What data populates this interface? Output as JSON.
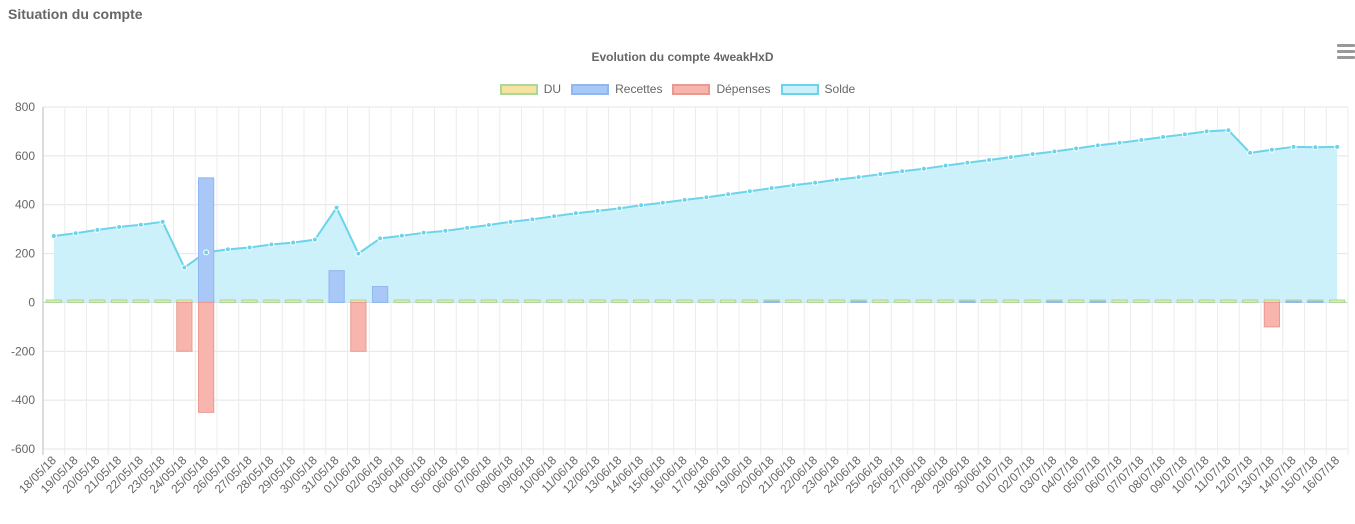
{
  "page": {
    "heading": "Situation du compte"
  },
  "menu_icon": "hamburger-menu-icon",
  "chart_data": {
    "type": "bar",
    "title": "Evolution du compte 4weakHxD",
    "xlabel": "",
    "ylabel": "",
    "ylim": [
      -600,
      800
    ],
    "y_ticks": [
      800,
      600,
      400,
      200,
      0,
      -200,
      -400,
      -600
    ],
    "grid": true,
    "legend_position": "top",
    "categories": [
      "18/05/18",
      "19/05/18",
      "20/05/18",
      "21/05/18",
      "22/05/18",
      "23/05/18",
      "24/05/18",
      "25/05/18",
      "26/05/18",
      "27/05/18",
      "28/05/18",
      "29/05/18",
      "30/05/18",
      "31/05/18",
      "01/06/18",
      "02/06/18",
      "03/06/18",
      "04/06/18",
      "05/06/18",
      "06/06/18",
      "07/06/18",
      "08/06/18",
      "09/06/18",
      "10/06/18",
      "11/06/18",
      "12/06/18",
      "13/06/18",
      "14/06/18",
      "15/06/18",
      "16/06/18",
      "17/06/18",
      "18/06/18",
      "19/06/18",
      "20/06/18",
      "21/06/18",
      "22/06/18",
      "23/06/18",
      "24/06/18",
      "25/06/18",
      "26/06/18",
      "27/06/18",
      "28/06/18",
      "29/06/18",
      "30/06/18",
      "01/07/18",
      "02/07/18",
      "03/07/18",
      "04/07/18",
      "05/07/18",
      "06/07/18",
      "07/07/18",
      "08/07/18",
      "09/07/18",
      "10/07/18",
      "11/07/18",
      "12/07/18",
      "13/07/18",
      "14/07/18",
      "15/07/18",
      "16/07/18"
    ],
    "series": [
      {
        "name": "DU",
        "type": "bar",
        "color": "#f7e3a0",
        "border": "#a8d89a",
        "values": [
          10,
          10,
          10,
          10,
          10,
          10,
          10,
          10,
          10,
          10,
          10,
          10,
          10,
          10,
          10,
          10,
          10,
          10,
          10,
          10,
          10,
          10,
          10,
          10,
          10,
          10,
          10,
          10,
          10,
          10,
          10,
          10,
          10,
          10,
          10,
          10,
          10,
          10,
          10,
          10,
          10,
          10,
          10,
          10,
          10,
          10,
          10,
          10,
          10,
          10,
          10,
          10,
          10,
          10,
          10,
          10,
          10,
          10,
          10,
          10
        ]
      },
      {
        "name": "Recettes",
        "type": "bar",
        "color": "#a9c8f7",
        "border": "#8fb8f0",
        "values": [
          0,
          0,
          0,
          0,
          0,
          0,
          0,
          510,
          0,
          0,
          0,
          0,
          0,
          130,
          0,
          65,
          0,
          0,
          0,
          0,
          0,
          0,
          0,
          0,
          0,
          0,
          0,
          0,
          0,
          0,
          0,
          0,
          0,
          5,
          0,
          0,
          0,
          5,
          0,
          0,
          0,
          0,
          5,
          0,
          0,
          0,
          5,
          0,
          5,
          0,
          0,
          0,
          0,
          0,
          0,
          0,
          0,
          5,
          5,
          0
        ]
      },
      {
        "name": "Dépenses",
        "type": "bar",
        "color": "#f7b5ae",
        "border": "#e89a92",
        "values": [
          0,
          0,
          0,
          0,
          0,
          0,
          -200,
          -450,
          0,
          0,
          0,
          0,
          0,
          0,
          -200,
          0,
          0,
          0,
          0,
          0,
          0,
          0,
          0,
          0,
          0,
          0,
          0,
          0,
          0,
          0,
          0,
          0,
          0,
          0,
          0,
          0,
          0,
          0,
          0,
          0,
          0,
          0,
          0,
          0,
          0,
          0,
          0,
          0,
          0,
          0,
          0,
          0,
          0,
          0,
          0,
          0,
          -100,
          0,
          0,
          0
        ]
      },
      {
        "name": "Solde",
        "type": "line",
        "color": "#cdf1fb",
        "border": "#6cd4ea",
        "values": [
          272,
          283,
          297,
          309,
          318,
          330,
          143,
          205,
          217,
          225,
          237,
          245,
          257,
          388,
          200,
          262,
          273,
          285,
          293,
          305,
          317,
          330,
          340,
          353,
          365,
          375,
          385,
          398,
          408,
          420,
          430,
          443,
          455,
          468,
          480,
          490,
          502,
          513,
          525,
          537,
          547,
          560,
          572,
          583,
          595,
          607,
          618,
          630,
          643,
          653,
          665,
          677,
          688,
          700,
          705,
          612,
          625,
          637,
          635,
          637
        ]
      }
    ]
  }
}
